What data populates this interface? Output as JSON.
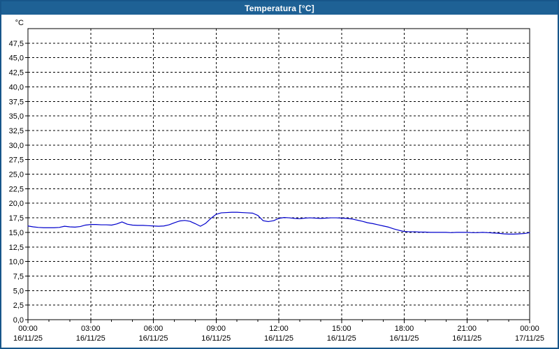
{
  "window": {
    "title": "Temperatura [°C]"
  },
  "colors": {
    "titlebar_bg": "#1E6195",
    "window_border": "#17568A",
    "plot_bg": "#FFFFFF",
    "grid": "#000000",
    "axis": "#000000",
    "text": "#000000",
    "series_line": "#0000CC"
  },
  "chart_data": {
    "type": "line",
    "title": "Temperatura [°C]",
    "y_axis_unit": "°C",
    "ylim": [
      0,
      50
    ],
    "ytick_step": 2.5,
    "ytick_values": [
      0,
      2.5,
      5,
      7.5,
      10,
      12.5,
      15,
      17.5,
      20,
      22.5,
      25,
      27.5,
      30,
      32.5,
      35,
      37.5,
      40,
      42.5,
      45,
      47.5
    ],
    "ytick_labels": [
      "0,0",
      "2,5",
      "5,0",
      "7,5",
      "10,0",
      "12,5",
      "15,0",
      "17,5",
      "20,0",
      "22,5",
      "25,0",
      "27,5",
      "30,0",
      "32,5",
      "35,0",
      "37,5",
      "40,0",
      "42,5",
      "45,0",
      "47,5"
    ],
    "xlim_hours": [
      0,
      24
    ],
    "minor_xtick_every_hours": 1,
    "grid_style": "dashed",
    "legend": "none",
    "xticks": [
      {
        "hour": 0,
        "time": "00:00",
        "date": "16/11/25"
      },
      {
        "hour": 3,
        "time": "03:00",
        "date": "16/11/25"
      },
      {
        "hour": 6,
        "time": "06:00",
        "date": "16/11/25"
      },
      {
        "hour": 9,
        "time": "09:00",
        "date": "16/11/25"
      },
      {
        "hour": 12,
        "time": "12:00",
        "date": "16/11/25"
      },
      {
        "hour": 15,
        "time": "15:00",
        "date": "16/11/25"
      },
      {
        "hour": 18,
        "time": "18:00",
        "date": "16/11/25"
      },
      {
        "hour": 21,
        "time": "21:00",
        "date": "16/11/25"
      },
      {
        "hour": 24,
        "time": "00:00",
        "date": "17/11/25"
      }
    ],
    "series": [
      {
        "name": "Temperatura",
        "color": "#0000CC",
        "x_hours": [
          0,
          0.25,
          0.5,
          0.75,
          1,
          1.25,
          1.5,
          1.75,
          2,
          2.25,
          2.5,
          2.75,
          3,
          3.25,
          3.5,
          3.75,
          4,
          4.25,
          4.5,
          4.75,
          5,
          5.25,
          5.5,
          5.75,
          6,
          6.25,
          6.5,
          6.75,
          7,
          7.25,
          7.5,
          7.75,
          8,
          8.25,
          8.5,
          8.75,
          9,
          9.25,
          9.5,
          9.75,
          10,
          10.25,
          10.5,
          10.75,
          11,
          11.25,
          11.5,
          11.75,
          12,
          12.25,
          12.5,
          12.75,
          13,
          13.25,
          13.5,
          13.75,
          14,
          14.25,
          14.5,
          14.75,
          15,
          15.25,
          15.5,
          15.75,
          16,
          16.25,
          16.5,
          16.75,
          17,
          17.25,
          17.5,
          17.75,
          18,
          18.25,
          18.5,
          18.75,
          19,
          19.25,
          19.5,
          19.75,
          20,
          20.25,
          20.5,
          20.75,
          21,
          21.25,
          21.5,
          21.75,
          22,
          22.25,
          22.5,
          22.75,
          23,
          23.25,
          23.5,
          23.75,
          24
        ],
        "values": [
          16.1,
          15.95,
          15.85,
          15.8,
          15.8,
          15.8,
          15.85,
          16.05,
          15.95,
          15.9,
          16.0,
          16.25,
          16.35,
          16.35,
          16.3,
          16.3,
          16.25,
          16.45,
          16.8,
          16.4,
          16.25,
          16.2,
          16.2,
          16.15,
          16.1,
          16.05,
          16.1,
          16.3,
          16.65,
          16.95,
          17.05,
          16.9,
          16.5,
          16.05,
          16.55,
          17.4,
          18.1,
          18.35,
          18.4,
          18.45,
          18.45,
          18.4,
          18.35,
          18.3,
          17.9,
          17.0,
          16.85,
          17.0,
          17.4,
          17.55,
          17.5,
          17.4,
          17.35,
          17.45,
          17.5,
          17.45,
          17.4,
          17.45,
          17.5,
          17.5,
          17.45,
          17.4,
          17.3,
          17.1,
          16.9,
          16.65,
          16.5,
          16.3,
          16.1,
          15.9,
          15.6,
          15.35,
          15.15,
          15.1,
          15.1,
          15.05,
          15.05,
          15.0,
          15.0,
          15.0,
          15.0,
          14.95,
          15.0,
          15.0,
          15.0,
          14.95,
          14.95,
          15.0,
          14.95,
          14.9,
          14.85,
          14.75,
          14.7,
          14.7,
          14.75,
          14.8,
          14.95
        ]
      }
    ]
  }
}
